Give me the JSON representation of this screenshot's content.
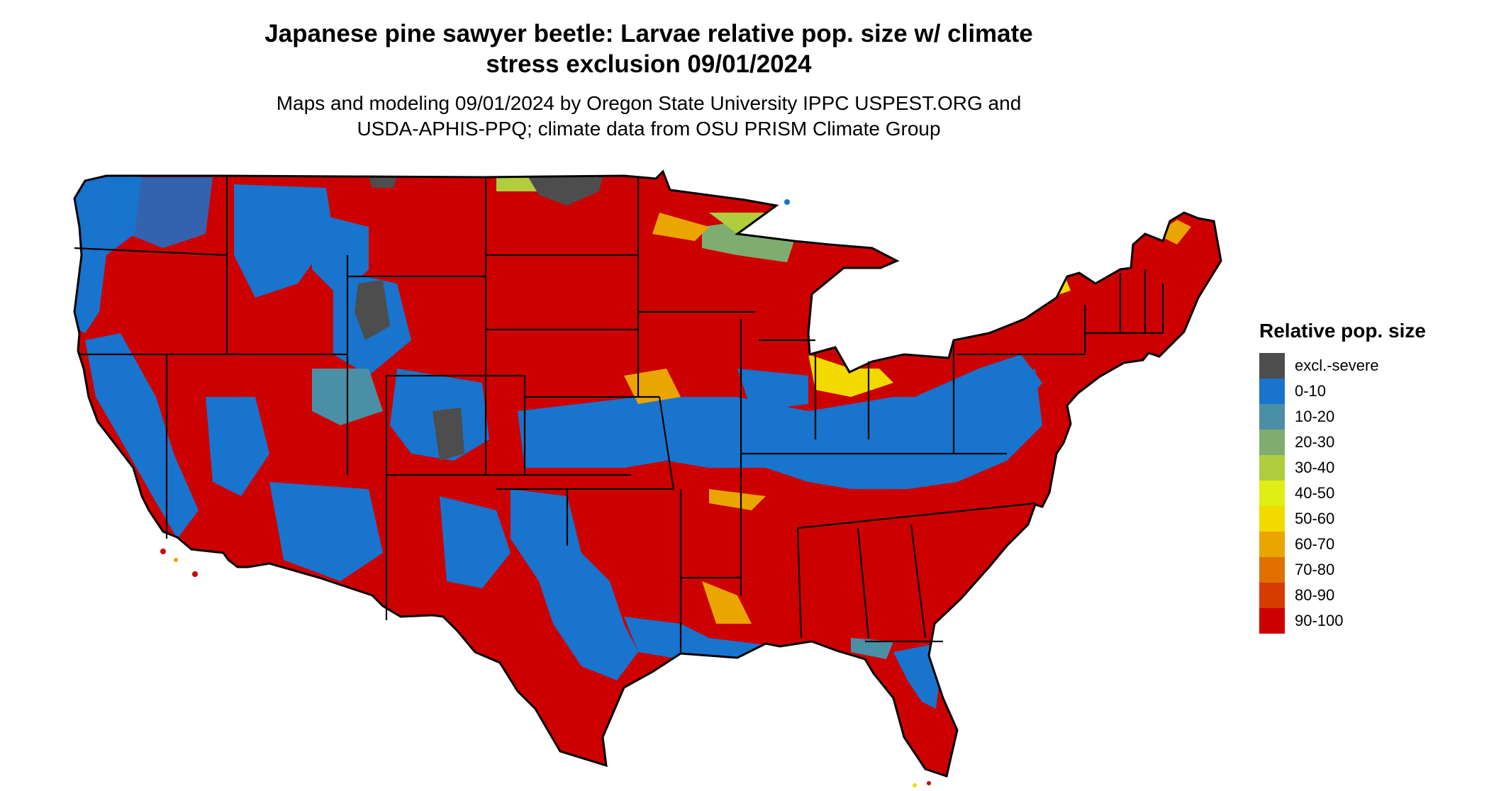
{
  "title": {
    "line1": "Japanese pine sawyer beetle: Larvae relative pop. size w/ climate",
    "line2": "stress exclusion 09/01/2024"
  },
  "subtitle": {
    "line1": "Maps and modeling 09/01/2024 by Oregon State University IPPC USPEST.ORG and",
    "line2": "USDA-APHIS-PPQ; climate data from OSU PRISM Climate Group"
  },
  "legend": {
    "title": "Relative pop. size",
    "items": [
      {
        "label": "excl.-severe",
        "color": "#4d4d4d"
      },
      {
        "label": "0-10",
        "color": "#1874cd"
      },
      {
        "label": "10-20",
        "color": "#4a8fa6"
      },
      {
        "label": "20-30",
        "color": "#7fad70"
      },
      {
        "label": "30-40",
        "color": "#afcd3c"
      },
      {
        "label": "40-50",
        "color": "#dfee14"
      },
      {
        "label": "50-60",
        "color": "#f2d900"
      },
      {
        "label": "60-70",
        "color": "#eaa500"
      },
      {
        "label": "70-80",
        "color": "#e07000"
      },
      {
        "label": "80-90",
        "color": "#d63c00"
      },
      {
        "label": "90-100",
        "color": "#cd0000"
      }
    ]
  }
}
